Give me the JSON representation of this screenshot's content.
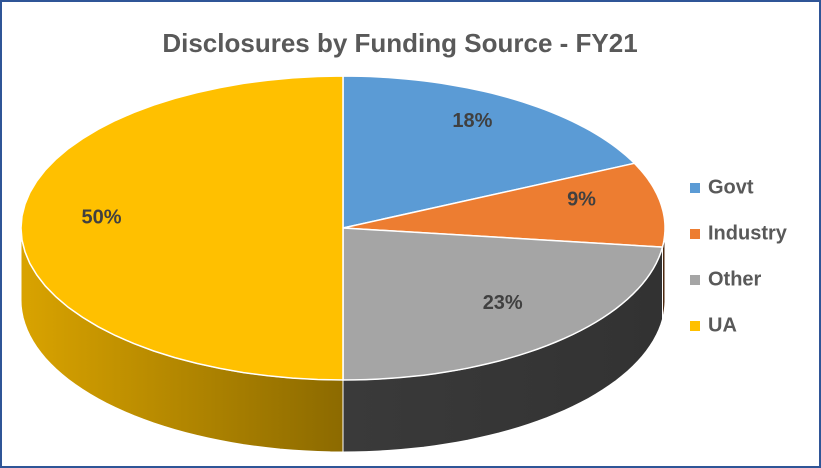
{
  "chart_data": {
    "type": "pie3d",
    "title": "Disclosures by Funding Source - FY21",
    "categories": [
      "Govt",
      "Industry",
      "Other",
      "UA"
    ],
    "values": [
      18,
      9,
      23,
      50
    ],
    "value_labels": [
      "18%",
      "9%",
      "23%",
      "50%"
    ],
    "colors": [
      "#5b9bd5",
      "#ed7d31",
      "#a5a5a5",
      "#ffc000"
    ],
    "legend": "right"
  }
}
